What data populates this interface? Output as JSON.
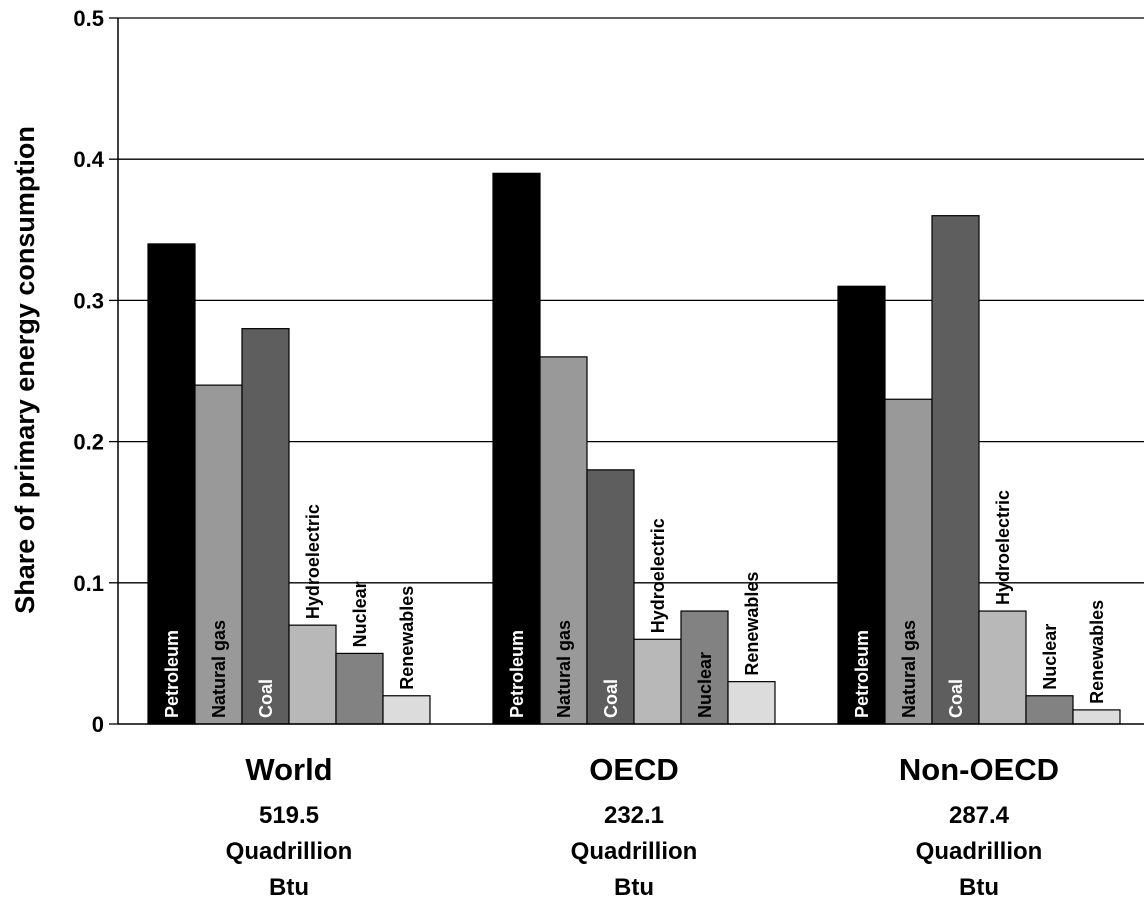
{
  "chart_data": {
    "type": "bar",
    "ylabel": "Share of primary energy consumption",
    "ylim": [
      0,
      0.5
    ],
    "yticks": [
      "0",
      "0.1",
      "0.2",
      "0.3",
      "0.4",
      "0.5"
    ],
    "grid": true,
    "series_labels": [
      "Petroleum",
      "Natural gas",
      "Coal",
      "Hydroelectric",
      "Nuclear",
      "Renewables"
    ],
    "series_colors": [
      "#000000",
      "#999999",
      "#5e5e5e",
      "#b8b8b8",
      "#828282",
      "#dcdcdc"
    ],
    "label_colors": [
      "#ffffff",
      "#000000",
      "#ffffff",
      "#000000",
      "#000000",
      "#000000"
    ],
    "groups": [
      {
        "name": "World",
        "total_lines": [
          "519.5",
          "Quadrillion",
          "Btu"
        ],
        "values": [
          0.34,
          0.24,
          0.28,
          0.07,
          0.05,
          0.02
        ]
      },
      {
        "name": "OECD",
        "total_lines": [
          "232.1",
          "Quadrillion",
          "Btu"
        ],
        "values": [
          0.39,
          0.26,
          0.18,
          0.06,
          0.08,
          0.03
        ]
      },
      {
        "name": "Non-OECD",
        "total_lines": [
          "287.4",
          "Quadrillion",
          "Btu"
        ],
        "values": [
          0.31,
          0.23,
          0.36,
          0.08,
          0.02,
          0.01
        ]
      }
    ]
  }
}
